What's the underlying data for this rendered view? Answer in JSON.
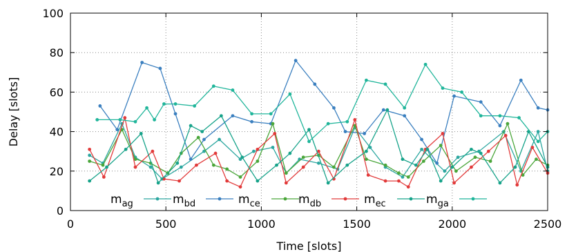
{
  "chart_data": {
    "type": "line",
    "xlabel": "Time [slots]",
    "ylabel": "Delay [slots]",
    "xlim": [
      0,
      2500
    ],
    "ylim": [
      0,
      100
    ],
    "x_ticks": [
      "0",
      "500",
      "1000",
      "1500",
      "2000",
      "2500"
    ],
    "y_ticks": [
      "0",
      "20",
      "40",
      "60",
      "80",
      "100"
    ],
    "grid": "dotted",
    "legend_position": "bottom-left, inside",
    "series": [
      {
        "name": "m_ag",
        "label_main": "m",
        "label_sub": "ag",
        "color": "#2ca7a0",
        "x": [
          100,
          170,
          270,
          340,
          420,
          480,
          580,
          700,
          780,
          890,
          960,
          1060,
          1130,
          1200,
          1300,
          1400,
          1490,
          1570,
          1650,
          1740,
          1840,
          1960,
          2030,
          2140,
          2270,
          2360,
          2450,
          2500
        ],
        "y": [
          28,
          24,
          44,
          27,
          22,
          16,
          22,
          30,
          36,
          26,
          30,
          32,
          19,
          26,
          24,
          21,
          42,
          32,
          22,
          17,
          31,
          20,
          27,
          30,
          40,
          20,
          40,
          20
        ]
      },
      {
        "name": "m_bd",
        "label_main": "m",
        "label_sub": "bd",
        "color": "#3a7fbf",
        "x": [
          155,
          245,
          375,
          470,
          550,
          630,
          700,
          850,
          950,
          1050,
          1180,
          1280,
          1380,
          1440,
          1540,
          1640,
          1750,
          1840,
          1920,
          2010,
          2150,
          2250,
          2360,
          2450,
          2500
        ],
        "y": [
          53,
          41,
          75,
          72,
          49,
          26,
          36,
          48,
          45,
          44,
          76,
          64,
          52,
          40,
          39,
          51,
          48,
          36,
          24,
          58,
          55,
          43,
          66,
          52,
          51
        ]
      },
      {
        "name": "m_ce",
        "label_main": "m",
        "label_sub": "ce",
        "color": "#4aa63a",
        "x": [
          100,
          170,
          270,
          340,
          420,
          510,
          580,
          670,
          750,
          820,
          890,
          980,
          1060,
          1130,
          1220,
          1300,
          1380,
          1490,
          1550,
          1650,
          1720,
          1770,
          1850,
          1940,
          2020,
          2120,
          2200,
          2290,
          2370,
          2440,
          2500
        ],
        "y": [
          25,
          23,
          41,
          26,
          24,
          19,
          29,
          37,
          23,
          21,
          17,
          25,
          44,
          19,
          27,
          28,
          22,
          43,
          26,
          23,
          19,
          17,
          25,
          33,
          20,
          27,
          25,
          44,
          18,
          26,
          23
        ]
      },
      {
        "name": "m_db",
        "label_main": "m",
        "label_sub": "db",
        "color": "#e23a3a",
        "x": [
          100,
          175,
          285,
          340,
          430,
          490,
          570,
          660,
          760,
          820,
          890,
          980,
          1070,
          1130,
          1220,
          1300,
          1380,
          1490,
          1560,
          1650,
          1720,
          1770,
          1860,
          1950,
          2010,
          2100,
          2190,
          2280,
          2340,
          2420,
          2500
        ],
        "y": [
          31,
          17,
          47,
          22,
          30,
          16,
          15,
          23,
          29,
          15,
          12,
          31,
          39,
          14,
          22,
          30,
          16,
          46,
          18,
          15,
          15,
          12,
          31,
          39,
          14,
          22,
          30,
          38,
          13,
          32,
          19
        ]
      },
      {
        "name": "m_ec",
        "label_main": "m",
        "label_sub": "ec",
        "color": "#17a38a",
        "x": [
          100,
          190,
          290,
          370,
          460,
          560,
          630,
          690,
          790,
          900,
          980,
          1080,
          1150,
          1250,
          1350,
          1450,
          1550,
          1660,
          1740,
          1810,
          1870,
          1940,
          2000,
          2100,
          2150,
          2250,
          2330,
          2400,
          2500
        ],
        "y": [
          15,
          22,
          31,
          39,
          14,
          24,
          43,
          40,
          48,
          27,
          15,
          23,
          29,
          41,
          14,
          23,
          30,
          51,
          26,
          23,
          31,
          15,
          22,
          31,
          29,
          14,
          22,
          40,
          22
        ]
      },
      {
        "name": "m_ga",
        "label_main": "m",
        "label_sub": "ga",
        "color": "#1fb59a",
        "x": [
          140,
          260,
          340,
          400,
          440,
          490,
          550,
          650,
          750,
          850,
          950,
          1050,
          1150,
          1250,
          1350,
          1450,
          1550,
          1650,
          1750,
          1860,
          1950,
          2050,
          2150,
          2250,
          2350,
          2450,
          2500
        ],
        "y": [
          46,
          46,
          45,
          52,
          46,
          54,
          54,
          53,
          63,
          61,
          49,
          49,
          59,
          35,
          44,
          45,
          66,
          64,
          52,
          74,
          62,
          60,
          48,
          48,
          47,
          35,
          40
        ]
      }
    ]
  }
}
